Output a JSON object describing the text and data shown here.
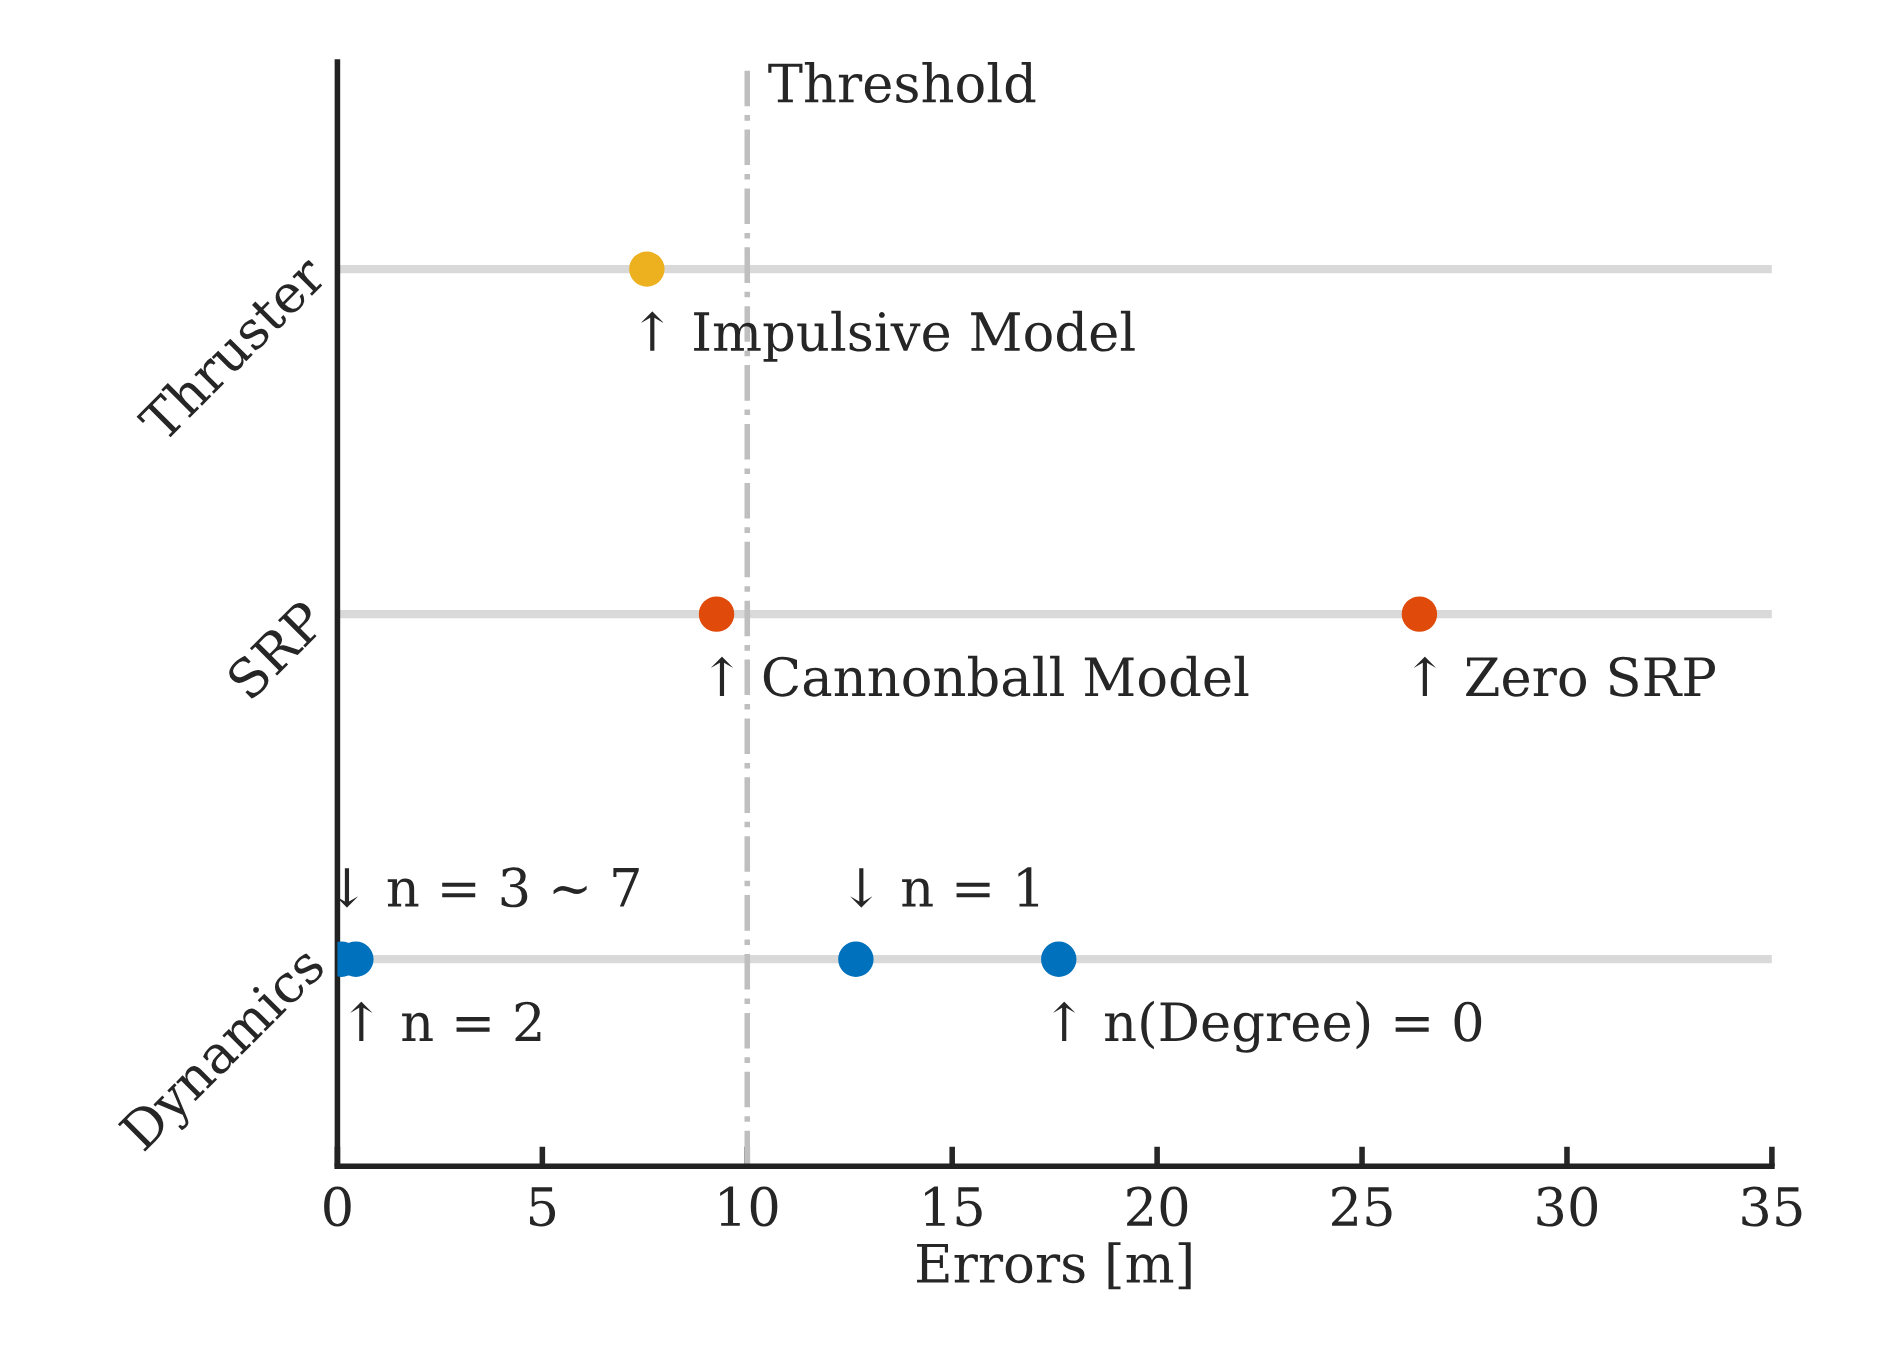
{
  "chart_data": {
    "type": "scatter",
    "orientation": "horizontal",
    "xlabel": "Errors [m]",
    "categories": [
      "Thruster",
      "SRP",
      "Dynamics"
    ],
    "series": [
      {
        "color": "#edb120",
        "values": [
          7.55,
          null,
          null
        ]
      },
      {
        "color": "#e04a0a",
        "values": [
          null,
          9.25,
          null
        ]
      },
      {
        "color": "#e04a0a",
        "values": [
          null,
          26.4,
          null
        ]
      },
      {
        "color": "#0072bd",
        "values": [
          null,
          null,
          17.6
        ]
      },
      {
        "color": "#0072bd",
        "values": [
          null,
          null,
          12.65
        ]
      },
      {
        "color": "#0072bd",
        "values": [
          null,
          null,
          0.45
        ]
      },
      {
        "color": "#0072bd",
        "values": [
          null,
          null,
          0.1
        ]
      }
    ],
    "xlim": [
      0,
      35
    ],
    "xticks": [
      0,
      5,
      10,
      15,
      20,
      25,
      30,
      35
    ],
    "grid": "y",
    "marker": "circle",
    "ref_lines": [
      {
        "axis": "x",
        "value": 10,
        "label": "Threshold",
        "color": "#bfbfbf",
        "line_style": "dashdot"
      }
    ],
    "annotations": [
      "↑ Impulsive Model",
      "↑ Cannonball Model",
      "↑ Zero SRP",
      "↑ n(Degree) = 0",
      "↓ n = 1",
      "↑ n = 2",
      "↓ n = 3 ∼ 7"
    ]
  }
}
